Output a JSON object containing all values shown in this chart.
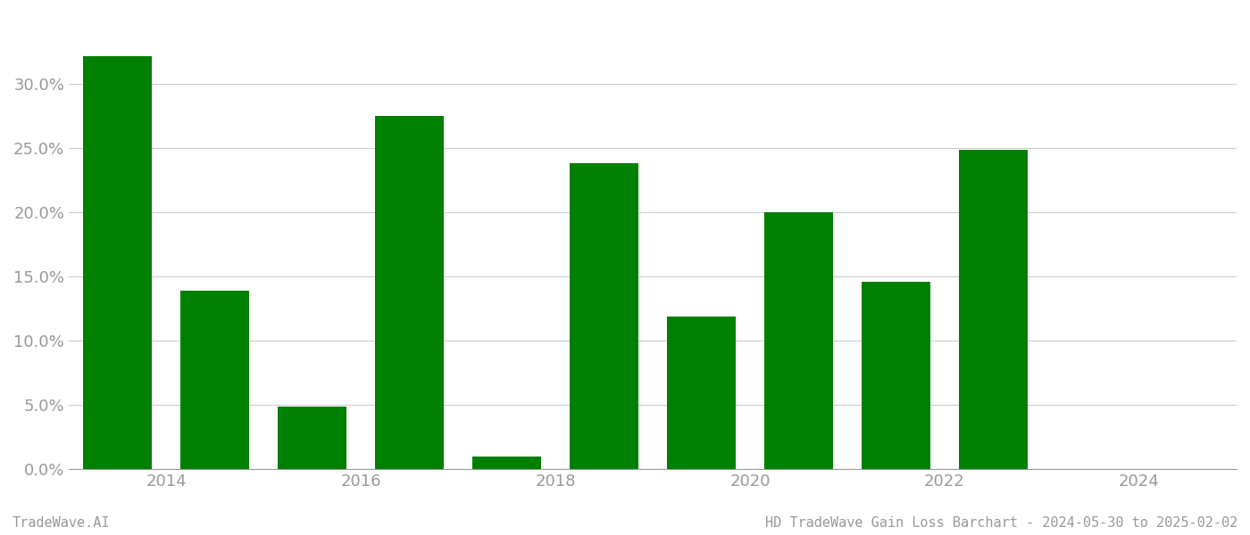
{
  "years": [
    2013.5,
    2014.5,
    2015.5,
    2016.5,
    2017.5,
    2018.5,
    2019.5,
    2020.5,
    2021.5,
    2022.5,
    2023.5
  ],
  "values": [
    0.322,
    0.139,
    0.049,
    0.275,
    0.01,
    0.238,
    0.119,
    0.2,
    0.146,
    0.249,
    0.0
  ],
  "bar_color": "#008000",
  "background_color": "#ffffff",
  "grid_color": "#cccccc",
  "axis_tick_color": "#999999",
  "footer_left": "TradeWave.AI",
  "footer_right": "HD TradeWave Gain Loss Barchart - 2024-05-30 to 2025-02-02",
  "ylim": [
    0,
    0.355
  ],
  "yticks": [
    0.0,
    0.05,
    0.1,
    0.15,
    0.2,
    0.25,
    0.3
  ],
  "xtick_positions": [
    2014,
    2016,
    2018,
    2020,
    2022,
    2024
  ],
  "xtick_labels": [
    "2014",
    "2016",
    "2018",
    "2020",
    "2022",
    "2024"
  ],
  "bar_width": 0.7,
  "figsize": [
    14.0,
    6.0
  ],
  "dpi": 100,
  "xlim": [
    2013.0,
    2025.0
  ]
}
